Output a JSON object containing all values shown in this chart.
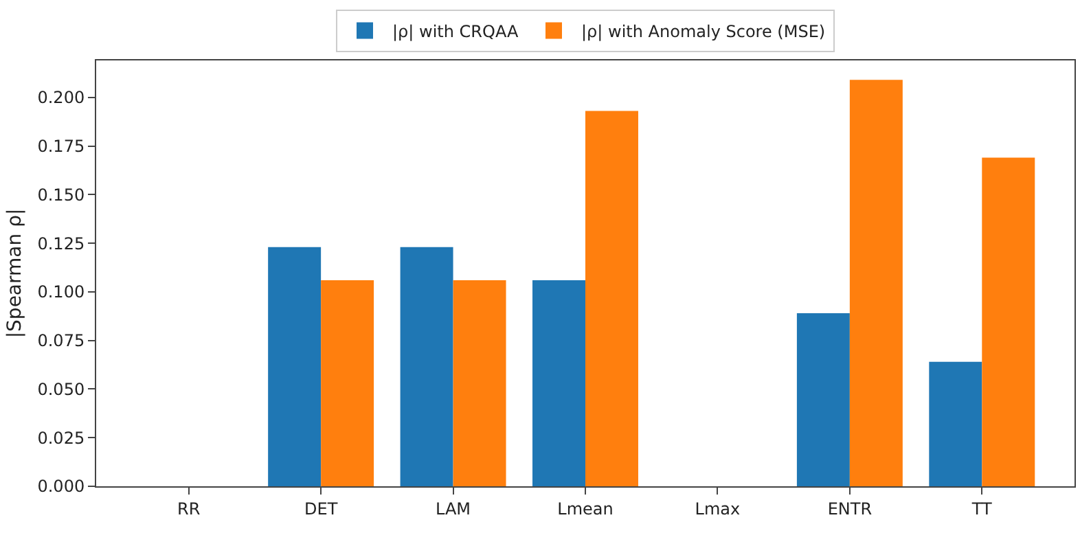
{
  "chart_data": {
    "type": "bar",
    "categories": [
      "RR",
      "DET",
      "LAM",
      "Lmean",
      "Lmax",
      "ENTR",
      "TT"
    ],
    "ylabel": "|Spearman ρ|",
    "ylim": [
      0,
      0.219
    ],
    "yticks": [
      {
        "value": 0,
        "label": "0.000"
      },
      {
        "value": 0.025,
        "label": "0.025"
      },
      {
        "value": 0.05,
        "label": "0.050"
      },
      {
        "value": 0.075,
        "label": "0.075"
      },
      {
        "value": 0.1,
        "label": "0.100"
      },
      {
        "value": 0.125,
        "label": "0.125"
      },
      {
        "value": 0.15,
        "label": "0.150"
      },
      {
        "value": 0.175,
        "label": "0.175"
      },
      {
        "value": 0.2,
        "label": "0.200"
      }
    ],
    "legend": "top",
    "series": [
      {
        "name": "|ρ| with CRQAA",
        "color": "#1f77b4",
        "values": [
          0,
          0.123,
          0.123,
          0.106,
          0,
          0.089,
          0.064
        ]
      },
      {
        "name": "|ρ| with Anomaly Score (MSE)",
        "color": "#ff7f0e",
        "values": [
          0,
          0.106,
          0.106,
          0.193,
          0,
          0.209,
          0.169
        ]
      }
    ]
  }
}
